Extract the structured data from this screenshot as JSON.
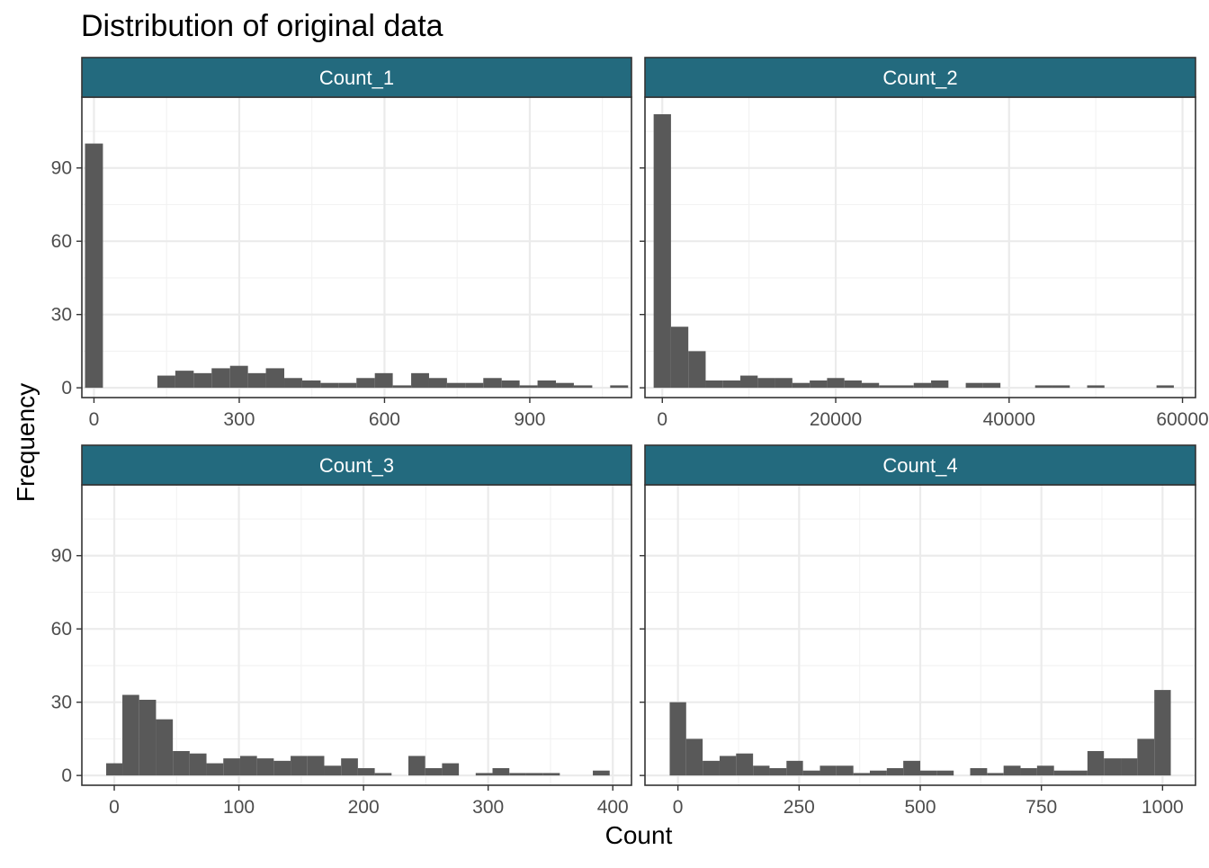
{
  "chart_data": {
    "type": "bar",
    "title": "Distribution of original data",
    "xlabel": "Count",
    "ylabel": "Frequency",
    "colors": {
      "strip": "#236a7e",
      "bar": "#595959"
    },
    "grid": true,
    "y_ticks": [
      "0",
      "30",
      "60",
      "90"
    ],
    "ylim": [
      -4,
      119
    ],
    "facets": [
      {
        "name": "Count_1",
        "xlim": [
          -25,
          1110
        ],
        "x_ticks": [
          {
            "v": 0,
            "label": "0"
          },
          {
            "v": 300,
            "label": "300"
          },
          {
            "v": 600,
            "label": "600"
          },
          {
            "v": 900,
            "label": "900"
          }
        ],
        "bins": [
          {
            "x0": -18.5,
            "x1": 18.5,
            "y": 100
          },
          {
            "x0": 131,
            "x1": 168,
            "y": 5
          },
          {
            "x0": 168,
            "x1": 206,
            "y": 7
          },
          {
            "x0": 206,
            "x1": 243,
            "y": 6
          },
          {
            "x0": 243,
            "x1": 281,
            "y": 8
          },
          {
            "x0": 281,
            "x1": 318,
            "y": 9
          },
          {
            "x0": 318,
            "x1": 355,
            "y": 6
          },
          {
            "x0": 355,
            "x1": 393,
            "y": 8
          },
          {
            "x0": 393,
            "x1": 430,
            "y": 4
          },
          {
            "x0": 430,
            "x1": 468,
            "y": 3
          },
          {
            "x0": 468,
            "x1": 505,
            "y": 2
          },
          {
            "x0": 505,
            "x1": 542,
            "y": 2
          },
          {
            "x0": 542,
            "x1": 580,
            "y": 4
          },
          {
            "x0": 580,
            "x1": 617,
            "y": 6
          },
          {
            "x0": 617,
            "x1": 655,
            "y": 1
          },
          {
            "x0": 655,
            "x1": 692,
            "y": 6
          },
          {
            "x0": 692,
            "x1": 729,
            "y": 4
          },
          {
            "x0": 729,
            "x1": 767,
            "y": 2
          },
          {
            "x0": 767,
            "x1": 804,
            "y": 2
          },
          {
            "x0": 804,
            "x1": 842,
            "y": 4
          },
          {
            "x0": 842,
            "x1": 879,
            "y": 3
          },
          {
            "x0": 879,
            "x1": 916,
            "y": 1
          },
          {
            "x0": 916,
            "x1": 954,
            "y": 3
          },
          {
            "x0": 954,
            "x1": 991,
            "y": 2
          },
          {
            "x0": 991,
            "x1": 1029,
            "y": 1
          },
          {
            "x0": 1066,
            "x1": 1103,
            "y": 1
          }
        ]
      },
      {
        "name": "Count_2",
        "xlim": [
          -2000,
          61500
        ],
        "x_ticks": [
          {
            "v": 0,
            "label": "0"
          },
          {
            "v": 20000,
            "label": "20000"
          },
          {
            "v": 40000,
            "label": "40000"
          },
          {
            "v": 60000,
            "label": "60000"
          }
        ],
        "bins": [
          {
            "x0": -1000,
            "x1": 1000,
            "y": 112
          },
          {
            "x0": 1000,
            "x1": 3000,
            "y": 25
          },
          {
            "x0": 3000,
            "x1": 5000,
            "y": 15
          },
          {
            "x0": 5000,
            "x1": 7000,
            "y": 3
          },
          {
            "x0": 7000,
            "x1": 9000,
            "y": 3
          },
          {
            "x0": 9000,
            "x1": 11000,
            "y": 5
          },
          {
            "x0": 11000,
            "x1": 13000,
            "y": 4
          },
          {
            "x0": 13000,
            "x1": 15000,
            "y": 4
          },
          {
            "x0": 15000,
            "x1": 17000,
            "y": 2
          },
          {
            "x0": 17000,
            "x1": 19000,
            "y": 3
          },
          {
            "x0": 19000,
            "x1": 21000,
            "y": 4
          },
          {
            "x0": 21000,
            "x1": 23000,
            "y": 3
          },
          {
            "x0": 23000,
            "x1": 25000,
            "y": 2
          },
          {
            "x0": 25000,
            "x1": 27000,
            "y": 1
          },
          {
            "x0": 27000,
            "x1": 29000,
            "y": 1
          },
          {
            "x0": 29000,
            "x1": 31000,
            "y": 2
          },
          {
            "x0": 31000,
            "x1": 33000,
            "y": 3
          },
          {
            "x0": 35000,
            "x1": 37000,
            "y": 2
          },
          {
            "x0": 37000,
            "x1": 39000,
            "y": 2
          },
          {
            "x0": 43000,
            "x1": 45000,
            "y": 1
          },
          {
            "x0": 45000,
            "x1": 47000,
            "y": 1
          },
          {
            "x0": 49000,
            "x1": 51000,
            "y": 1
          },
          {
            "x0": 57000,
            "x1": 59000,
            "y": 1
          }
        ]
      },
      {
        "name": "Count_3",
        "xlim": [
          -26,
          415
        ],
        "x_ticks": [
          {
            "v": 0,
            "label": "0"
          },
          {
            "v": 100,
            "label": "100"
          },
          {
            "v": 200,
            "label": "200"
          },
          {
            "v": 300,
            "label": "300"
          },
          {
            "v": 400,
            "label": "400"
          }
        ],
        "bins": [
          {
            "x0": -6.5,
            "x1": 6.5,
            "y": 5
          },
          {
            "x0": 6.5,
            "x1": 20,
            "y": 33
          },
          {
            "x0": 20,
            "x1": 33.5,
            "y": 31
          },
          {
            "x0": 33.5,
            "x1": 47,
            "y": 23
          },
          {
            "x0": 47,
            "x1": 60.5,
            "y": 10
          },
          {
            "x0": 60.5,
            "x1": 74,
            "y": 9
          },
          {
            "x0": 74,
            "x1": 87.5,
            "y": 5
          },
          {
            "x0": 87.5,
            "x1": 101,
            "y": 7
          },
          {
            "x0": 101,
            "x1": 114.5,
            "y": 8
          },
          {
            "x0": 114.5,
            "x1": 128,
            "y": 7
          },
          {
            "x0": 128,
            "x1": 141.5,
            "y": 6
          },
          {
            "x0": 141.5,
            "x1": 155,
            "y": 8
          },
          {
            "x0": 155,
            "x1": 168.5,
            "y": 8
          },
          {
            "x0": 168.5,
            "x1": 182,
            "y": 4
          },
          {
            "x0": 182,
            "x1": 195.5,
            "y": 7
          },
          {
            "x0": 195.5,
            "x1": 209,
            "y": 3
          },
          {
            "x0": 209,
            "x1": 222.5,
            "y": 1
          },
          {
            "x0": 236,
            "x1": 249.5,
            "y": 8
          },
          {
            "x0": 249.5,
            "x1": 263,
            "y": 3
          },
          {
            "x0": 263,
            "x1": 276.5,
            "y": 5
          },
          {
            "x0": 290,
            "x1": 303.5,
            "y": 1
          },
          {
            "x0": 303.5,
            "x1": 317,
            "y": 3
          },
          {
            "x0": 317,
            "x1": 330.5,
            "y": 1
          },
          {
            "x0": 330.5,
            "x1": 344,
            "y": 1
          },
          {
            "x0": 344,
            "x1": 357.5,
            "y": 1
          },
          {
            "x0": 384,
            "x1": 397.5,
            "y": 2
          }
        ]
      },
      {
        "name": "Count_4",
        "xlim": [
          -68,
          1068
        ],
        "x_ticks": [
          {
            "v": 0,
            "label": "0"
          },
          {
            "v": 250,
            "label": "250"
          },
          {
            "v": 500,
            "label": "500"
          },
          {
            "v": 750,
            "label": "750"
          },
          {
            "v": 1000,
            "label": "1000"
          }
        ],
        "bins": [
          {
            "x0": -17,
            "x1": 17,
            "y": 30
          },
          {
            "x0": 17,
            "x1": 51,
            "y": 15
          },
          {
            "x0": 51,
            "x1": 86,
            "y": 6
          },
          {
            "x0": 86,
            "x1": 120,
            "y": 8
          },
          {
            "x0": 120,
            "x1": 155,
            "y": 9
          },
          {
            "x0": 155,
            "x1": 189,
            "y": 4
          },
          {
            "x0": 189,
            "x1": 224,
            "y": 3
          },
          {
            "x0": 224,
            "x1": 258,
            "y": 6
          },
          {
            "x0": 258,
            "x1": 293,
            "y": 2
          },
          {
            "x0": 293,
            "x1": 327,
            "y": 4
          },
          {
            "x0": 327,
            "x1": 362,
            "y": 4
          },
          {
            "x0": 362,
            "x1": 396,
            "y": 1
          },
          {
            "x0": 396,
            "x1": 431,
            "y": 2
          },
          {
            "x0": 431,
            "x1": 465,
            "y": 3
          },
          {
            "x0": 465,
            "x1": 500,
            "y": 6
          },
          {
            "x0": 500,
            "x1": 534,
            "y": 2
          },
          {
            "x0": 534,
            "x1": 569,
            "y": 2
          },
          {
            "x0": 603,
            "x1": 638,
            "y": 3
          },
          {
            "x0": 638,
            "x1": 672,
            "y": 1
          },
          {
            "x0": 672,
            "x1": 707,
            "y": 4
          },
          {
            "x0": 707,
            "x1": 741,
            "y": 3
          },
          {
            "x0": 741,
            "x1": 776,
            "y": 4
          },
          {
            "x0": 776,
            "x1": 810,
            "y": 2
          },
          {
            "x0": 810,
            "x1": 845,
            "y": 2
          },
          {
            "x0": 845,
            "x1": 879,
            "y": 10
          },
          {
            "x0": 879,
            "x1": 914,
            "y": 7
          },
          {
            "x0": 914,
            "x1": 948,
            "y": 7
          },
          {
            "x0": 948,
            "x1": 983,
            "y": 15
          },
          {
            "x0": 983,
            "x1": 1017,
            "y": 35
          }
        ]
      }
    ]
  }
}
